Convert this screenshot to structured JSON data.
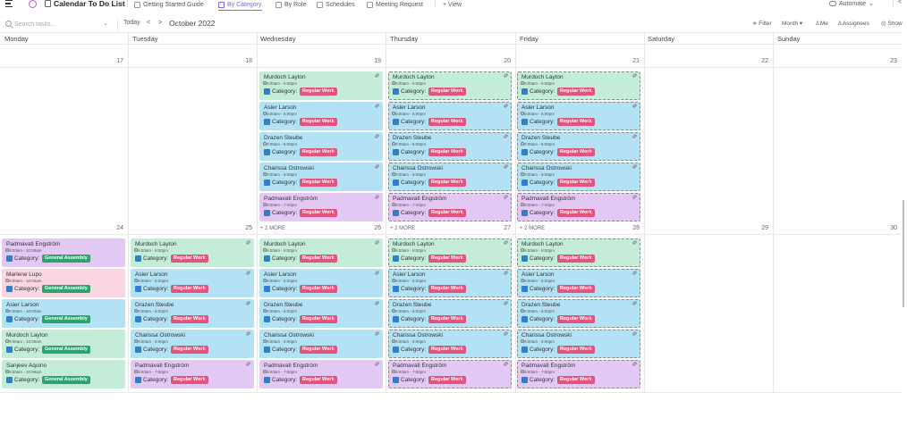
{
  "app": {
    "title": "Calendar To Do List"
  },
  "tabs": [
    {
      "label": "Getting Started Guide"
    },
    {
      "label": "By Category"
    },
    {
      "label": "By Role"
    },
    {
      "label": "Schedules"
    },
    {
      "label": "Meeting Request"
    },
    {
      "label": "+ View"
    }
  ],
  "header_right": {
    "automate": "Automate"
  },
  "toolbar": {
    "search_placeholder": "Search tasks...",
    "today": "Today",
    "prev": "<",
    "next": ">",
    "month_label": "October 2022",
    "filter": "Filter",
    "view": "Month",
    "me": "Me",
    "assignees": "Assignees",
    "show": "Show"
  },
  "days": [
    "Monday",
    "Tuesday",
    "Wednesday",
    "Thursday",
    "Friday",
    "Saturday",
    "Sunday"
  ],
  "weeks": [
    {
      "dates": [
        "17",
        "18",
        "19",
        "20",
        "21",
        "22",
        "23"
      ],
      "more": [
        "",
        "",
        "",
        "",
        "",
        "",
        ""
      ]
    },
    {
      "dates": [
        "24",
        "25",
        "26",
        "27",
        "28",
        "29",
        "30"
      ],
      "more": [
        "",
        "",
        "+ 2 MORE",
        "+ 2 MORE",
        "+ 2 MORE",
        "",
        ""
      ]
    }
  ],
  "category_label": "Category:",
  "events": {
    "wk1_wed": [
      {
        "name": "Murdoch Layton",
        "time": "9:00am - 5:00pm",
        "badge": "Regular Work"
      },
      {
        "name": "Asier Larson",
        "time": "9:00am - 5:00pm",
        "badge": "Regular Work"
      },
      {
        "name": "Drazen Steube",
        "time": "9:00am - 5:00pm",
        "badge": "Regular Work"
      },
      {
        "name": "Charissa Ostrowski",
        "time": "9:00am - 5:00pm",
        "badge": "Regular Work"
      },
      {
        "name": "Padmavati Engström",
        "time": "9:00am - 7:00pm",
        "badge": "Regular Work"
      }
    ],
    "wk1_thu": [
      {
        "name": "Murdoch Layton",
        "time": "9:00am - 5:00pm",
        "badge": "Regular Work"
      },
      {
        "name": "Asier Larson",
        "time": "9:00am - 5:00pm",
        "badge": "Regular Work"
      },
      {
        "name": "Drazen Steube",
        "time": "9:00am - 5:00pm",
        "badge": "Regular Work"
      },
      {
        "name": "Charissa Ostrowski",
        "time": "9:00am - 5:00pm",
        "badge": "Regular Work"
      },
      {
        "name": "Padmavati Engström",
        "time": "9:00am - 7:00pm",
        "badge": "Regular Work"
      }
    ],
    "wk1_fri": [
      {
        "name": "Murdoch Layton",
        "time": "9:00am - 5:00pm",
        "badge": "Regular Work"
      },
      {
        "name": "Asier Larson",
        "time": "9:00am - 5:00pm",
        "badge": "Regular Work"
      },
      {
        "name": "Drazen Steube",
        "time": "9:00am - 5:00pm",
        "badge": "Regular Work"
      },
      {
        "name": "Charissa Ostrowski",
        "time": "9:00am - 5:00pm",
        "badge": "Regular Work"
      },
      {
        "name": "Padmavati Engström",
        "time": "9:00am - 7:00pm",
        "badge": "Regular Work"
      }
    ],
    "wk2_mon": [
      {
        "name": "Padmavati Engström",
        "time": "9:00am - 10:00am",
        "badge": "General Assembly"
      },
      {
        "name": "Marlene Lupo",
        "time": "9:00am - 10:00am",
        "badge": "General Assembly"
      },
      {
        "name": "Asier Larson",
        "time": "9:00am - 10:00am",
        "badge": "General Assembly"
      },
      {
        "name": "Murdoch Layton",
        "time": "9:00am - 10:00am",
        "badge": "General Assembly"
      },
      {
        "name": "Sanjeev Aquino",
        "time": "9:00am - 10:00am",
        "badge": "General Assembly"
      }
    ],
    "wk2_tue": [
      {
        "name": "Murdoch Layton",
        "time": "9:00am - 5:00pm",
        "badge": "Regular Work"
      },
      {
        "name": "Asier Larson",
        "time": "9:00am - 5:00pm",
        "badge": "Regular Work"
      },
      {
        "name": "Drazen Steube",
        "time": "9:00am - 5:00pm",
        "badge": "Regular Work"
      },
      {
        "name": "Charissa Ostrowski",
        "time": "9:00am - 5:00pm",
        "badge": "Regular Work"
      },
      {
        "name": "Padmavati Engström",
        "time": "9:00am - 7:00pm",
        "badge": "Regular Work"
      }
    ],
    "wk2_wed": [
      {
        "name": "Murdoch Layton",
        "time": "9:00am - 5:00pm",
        "badge": "Regular Work"
      },
      {
        "name": "Asier Larson",
        "time": "9:00am - 5:00pm",
        "badge": "Regular Work"
      },
      {
        "name": "Drazen Steube",
        "time": "9:00am - 5:00pm",
        "badge": "Regular Work"
      },
      {
        "name": "Charissa Ostrowski",
        "time": "9:00am - 5:00pm",
        "badge": "Regular Work"
      },
      {
        "name": "Padmavati Engström",
        "time": "9:00am - 7:00pm",
        "badge": "Regular Work"
      }
    ],
    "wk2_thu": [
      {
        "name": "Murdoch Layton",
        "time": "9:00am - 5:00pm",
        "badge": "Regular Work"
      },
      {
        "name": "Asier Larson",
        "time": "9:00am - 5:00pm",
        "badge": "Regular Work"
      },
      {
        "name": "Drazen Steube",
        "time": "9:00am - 5:00pm",
        "badge": "Regular Work"
      },
      {
        "name": "Charissa Ostrowski",
        "time": "9:00am - 5:00pm",
        "badge": "Regular Work"
      },
      {
        "name": "Padmavati Engström",
        "time": "9:00am - 7:00pm",
        "badge": "Regular Work"
      }
    ],
    "wk2_fri": [
      {
        "name": "Murdoch Layton",
        "time": "9:00am - 5:00pm",
        "badge": "Regular Work"
      },
      {
        "name": "Asier Larson",
        "time": "9:00am - 5:00pm",
        "badge": "Regular Work"
      },
      {
        "name": "Drazen Steube",
        "time": "9:00am - 5:00pm",
        "badge": "Regular Work"
      },
      {
        "name": "Charissa Ostrowski",
        "time": "9:00am - 5:00pm",
        "badge": "Regular Work"
      },
      {
        "name": "Padmavati Engström",
        "time": "9:00am - 7:00pm",
        "badge": "Regular Work"
      }
    ]
  },
  "colors": {
    "accent": "#7b68ee",
    "regular_work": "#e2537f",
    "general_assembly": "#2ea46d",
    "card_green": "#c4edd8",
    "card_blue": "#b2e2f4",
    "card_purple": "#e3c8f3",
    "card_pink": "#f9d6e2"
  }
}
